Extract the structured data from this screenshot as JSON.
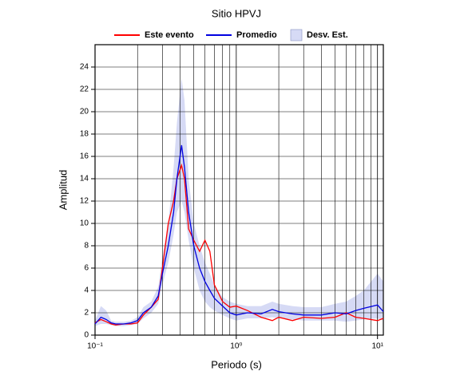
{
  "chart_data": {
    "type": "line",
    "title": "Sitio HPVJ",
    "xlabel": "Periodo (s)",
    "ylabel": "Amplitud",
    "xscale": "log",
    "xlim": [
      0.1,
      11
    ],
    "ylim": [
      0,
      26
    ],
    "xticks": [
      {
        "value": 0.1,
        "label": "10⁻¹"
      },
      {
        "value": 1,
        "label": "10⁰"
      },
      {
        "value": 10,
        "label": "10¹"
      }
    ],
    "x_minor_grid": [
      0.2,
      0.3,
      0.4,
      0.5,
      0.6,
      0.7,
      0.8,
      0.9,
      2,
      3,
      4,
      5,
      6,
      7,
      8,
      9
    ],
    "yticks": [
      0,
      2,
      4,
      6,
      8,
      10,
      12,
      14,
      16,
      18,
      20,
      22,
      24
    ],
    "grid": true,
    "x": [
      0.1,
      0.11,
      0.12,
      0.13,
      0.14,
      0.16,
      0.18,
      0.2,
      0.22,
      0.25,
      0.28,
      0.3,
      0.33,
      0.36,
      0.38,
      0.41,
      0.43,
      0.46,
      0.5,
      0.55,
      0.6,
      0.65,
      0.7,
      0.8,
      0.9,
      1.0,
      1.2,
      1.5,
      1.8,
      2,
      2.5,
      3,
      4,
      5,
      6,
      7,
      8,
      10,
      11
    ],
    "series": [
      {
        "name": "Este evento",
        "color": "#ff0000",
        "values": [
          1.1,
          1.4,
          1.2,
          1.0,
          0.9,
          1.0,
          1.0,
          1.1,
          1.8,
          2.5,
          3.2,
          6,
          10,
          12,
          14,
          15.2,
          14,
          9.5,
          8.5,
          7.5,
          8.5,
          7.5,
          4.5,
          3,
          2.5,
          2.6,
          2.2,
          1.6,
          1.3,
          1.6,
          1.3,
          1.6,
          1.5,
          1.6,
          2.0,
          1.6,
          1.5,
          1.3,
          1.5
        ]
      },
      {
        "name": "Promedio",
        "color": "#0000e0",
        "values": [
          1.0,
          1.6,
          1.4,
          1.1,
          1.0,
          1.0,
          1.1,
          1.3,
          2.0,
          2.5,
          3.5,
          5.5,
          8,
          11,
          14,
          17,
          15,
          11,
          8,
          6,
          4.8,
          4,
          3.3,
          2.6,
          2.0,
          1.8,
          2.0,
          1.9,
          2.3,
          2.1,
          1.9,
          1.8,
          1.8,
          2.0,
          1.9,
          2.2,
          2.4,
          2.7,
          2.1
        ]
      },
      {
        "name": "Desv. Est.",
        "color": "#d6daf5",
        "lower": [
          0.8,
          1.0,
          1.0,
          0.9,
          0.8,
          0.8,
          0.9,
          1.0,
          1.5,
          2.0,
          2.8,
          4.5,
          6.5,
          9,
          11,
          12,
          11,
          8.5,
          6,
          4,
          3,
          2.5,
          2.2,
          1.8,
          1.5,
          1.3,
          1.5,
          1.5,
          1.6,
          1.5,
          1.4,
          1.3,
          1.3,
          1.3,
          1.2,
          1.3,
          1.4,
          1.5,
          1.3
        ],
        "upper": [
          1.3,
          2.6,
          2.2,
          1.3,
          1.2,
          1.2,
          1.3,
          1.6,
          2.5,
          3,
          4.3,
          7,
          10,
          15,
          19,
          23,
          21,
          14,
          10,
          8,
          6.5,
          5.5,
          4.5,
          3.4,
          3,
          2.8,
          2.6,
          2.6,
          3,
          2.8,
          2.6,
          2.5,
          2.5,
          2.8,
          3,
          3.5,
          4,
          5.5,
          4.8
        ]
      }
    ]
  }
}
